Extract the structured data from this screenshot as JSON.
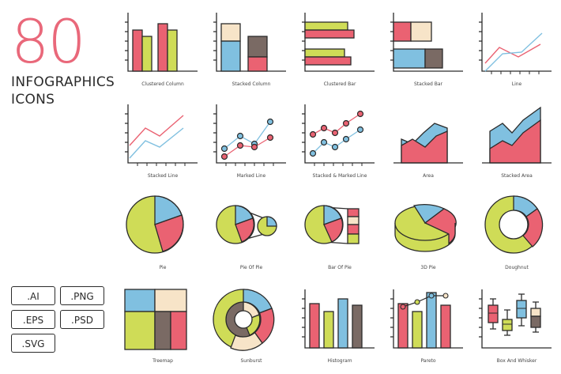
{
  "hero": {
    "number": "80",
    "title_line1": "INFOGRAPHICS",
    "title_line2": "ICONS"
  },
  "colors": {
    "red": "#ea6272",
    "green": "#cfdc57",
    "blue": "#80c0e0",
    "cream": "#f7e4c8",
    "brown": "#7a6a64",
    "outline": "#2b2b2b",
    "accent": "#e9687a"
  },
  "formats": [
    ".AI",
    ".PNG",
    ".EPS",
    ".PSD",
    ".SVG"
  ],
  "icons": [
    "Clustered Column",
    "Stacked Column",
    "Clustered Bar",
    "Stacked Bar",
    "Line",
    "Stacked Line",
    "Marked Line",
    "Stacked & Marked Line",
    "Area",
    "Stacked Area",
    "Pie",
    "Pie Of Pie",
    "Bar Of Pie",
    "3D Pie",
    "Doughnut",
    "Treemap",
    "Sunburst",
    "Histogram",
    "Pareto",
    "Box And Whisker"
  ]
}
